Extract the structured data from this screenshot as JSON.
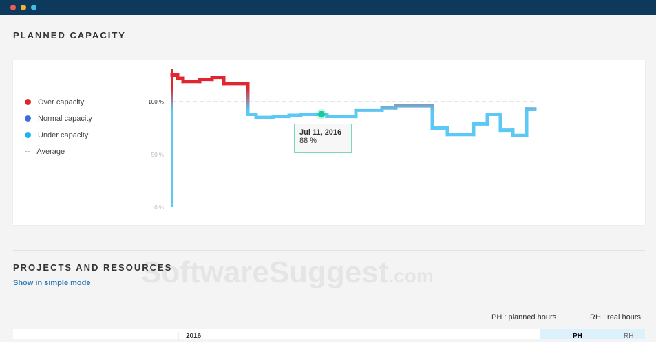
{
  "window": {
    "buttons": [
      "close",
      "minimize",
      "maximize"
    ]
  },
  "planned_capacity": {
    "title": "PLANNED CAPACITY",
    "legend": [
      {
        "label": "Over capacity",
        "color": "#e0232b",
        "marker": "dot"
      },
      {
        "label": "Normal capacity",
        "color": "#3a6ee0",
        "marker": "dot"
      },
      {
        "label": "Under capacity",
        "color": "#1ab4f0",
        "marker": "dot"
      },
      {
        "label": "Average",
        "marker": "--"
      }
    ],
    "y_ticks": [
      "100 %",
      "50 %",
      "0 %"
    ],
    "tooltip": {
      "date": "Jul 11, 2016",
      "value": "88 %"
    }
  },
  "chart_data": {
    "type": "line",
    "step": true,
    "ylim": [
      0,
      130
    ],
    "average": 100,
    "values": [
      125,
      122,
      119,
      121,
      123,
      117,
      88,
      85,
      86,
      87,
      88,
      86,
      92,
      94,
      96,
      75,
      69,
      79,
      88,
      73,
      68,
      93
    ],
    "colors": {
      "over": "#e0262f",
      "under": "#5bc8f5",
      "highlight": "#1bc9a0",
      "average": "#cccccc"
    }
  },
  "projects": {
    "title": "PROJECTS AND RESOURCES",
    "simple_mode_link": "Show in simple mode",
    "legend_ph": "PH : planned hours",
    "legend_rh": "RH : real hours",
    "year": "2016",
    "col_ph": "PH",
    "col_rh": "RH"
  },
  "watermark": {
    "text": "SoftwareSuggest",
    ".com": ".com"
  }
}
